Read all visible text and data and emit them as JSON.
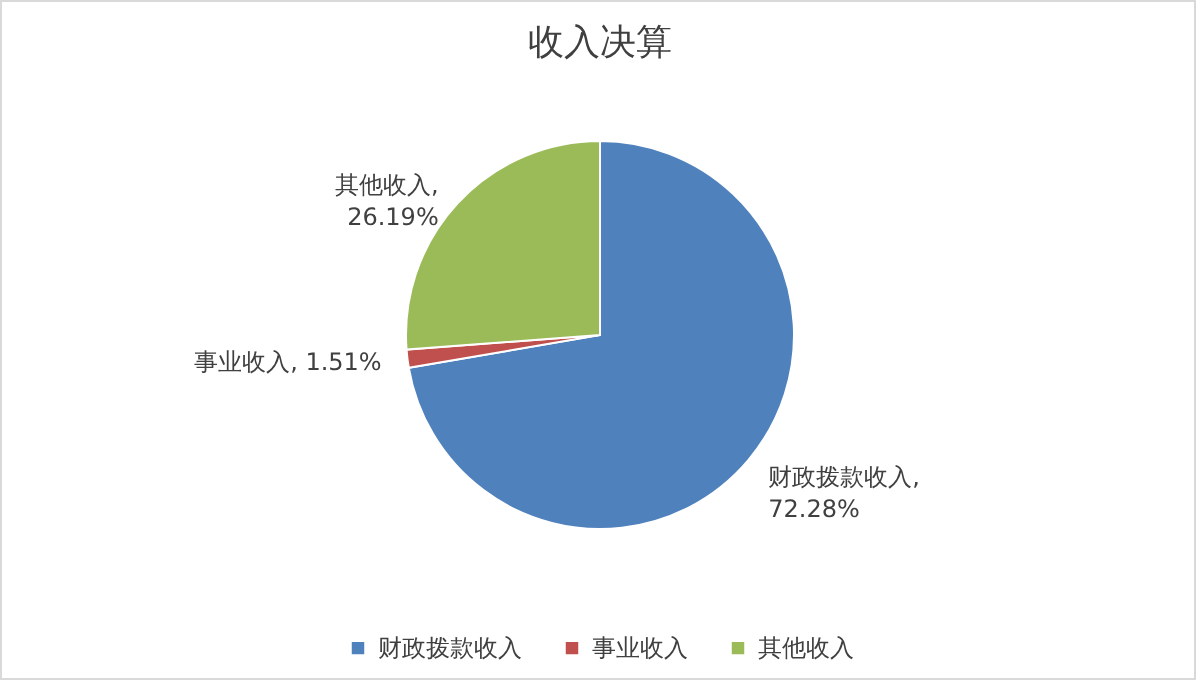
{
  "chart_data": {
    "type": "pie",
    "title": "收入决算",
    "categories": [
      "财政拨款收入",
      "事业收入",
      "其他收入"
    ],
    "values": [
      72.28,
      1.51,
      26.19
    ],
    "value_labels": [
      "财政拨款收入,\n72.28%",
      "事业收入, 1.51%",
      "其他收入,\n26.19%"
    ],
    "colors": [
      "#4f81bd",
      "#c0504d",
      "#9bbb59"
    ],
    "legend": "bottom"
  }
}
